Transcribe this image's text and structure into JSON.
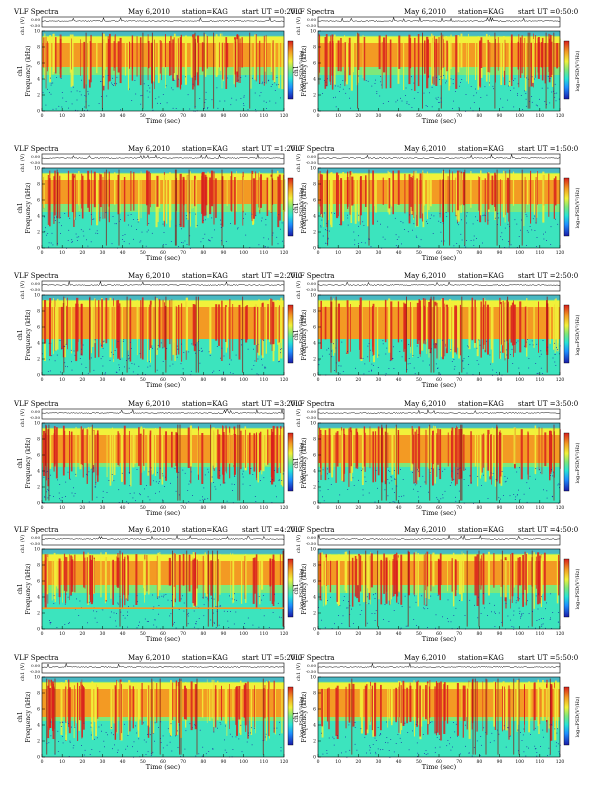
{
  "common": {
    "title_left": "VLF Spectra",
    "date": "May 6,2010",
    "station": "station=KAG",
    "wave_ylabel": "ch1 (V)",
    "wave_ticks": [
      "0.00",
      "-0.50"
    ],
    "spec_ylabel_prefix": "ch1",
    "spec_ylabel": "Frequency (kHz)",
    "freq_ticks": [
      "0",
      "2",
      "4",
      "6",
      "8",
      "10"
    ],
    "xlabel": "Time (sec)",
    "time_ticks": [
      "0",
      "10",
      "20",
      "30",
      "40",
      "50",
      "60",
      "70",
      "80",
      "90",
      "100",
      "110",
      "120"
    ],
    "colorbar_label": "log₁₀PSD(V²/Hz)"
  },
  "chart_data": [
    {
      "type": "heatmap",
      "start_label": "start UT =0:20:0",
      "xlim": [
        0,
        120
      ],
      "ylim": [
        0,
        10
      ],
      "band_khz": [
        5.5,
        8.5
      ],
      "cutoff_khz": 10
    },
    {
      "type": "heatmap",
      "start_label": "start UT =0:50:0",
      "xlim": [
        0,
        120
      ],
      "ylim": [
        0,
        10
      ],
      "band_khz": [
        5.5,
        8.5
      ],
      "cutoff_khz": 10
    },
    {
      "type": "heatmap",
      "start_label": "start UT =1:20:0",
      "xlim": [
        0,
        120
      ],
      "ylim": [
        0,
        10
      ],
      "band_khz": [
        5.5,
        8.5
      ],
      "cutoff_khz": 10
    },
    {
      "type": "heatmap",
      "start_label": "start UT =1:50:0",
      "xlim": [
        0,
        120
      ],
      "ylim": [
        0,
        10
      ],
      "band_khz": [
        5.5,
        8.5
      ],
      "cutoff_khz": 10
    },
    {
      "type": "heatmap",
      "start_label": "start UT =2:20:0",
      "xlim": [
        0,
        120
      ],
      "ylim": [
        0,
        10
      ],
      "band_khz": [
        4.5,
        8.5
      ],
      "cutoff_khz": 10
    },
    {
      "type": "heatmap",
      "start_label": "start UT =2:50:0",
      "xlim": [
        0,
        120
      ],
      "ylim": [
        0,
        10
      ],
      "band_khz": [
        4.5,
        8.5
      ],
      "cutoff_khz": 10
    },
    {
      "type": "heatmap",
      "start_label": "start UT =3:20:0",
      "xlim": [
        0,
        120
      ],
      "ylim": [
        0,
        10
      ],
      "band_khz": [
        5.0,
        8.5
      ],
      "cutoff_khz": 10
    },
    {
      "type": "heatmap",
      "start_label": "start UT =3:50:0",
      "xlim": [
        0,
        120
      ],
      "ylim": [
        0,
        10
      ],
      "band_khz": [
        5.0,
        8.5
      ],
      "cutoff_khz": 10
    },
    {
      "type": "heatmap",
      "start_label": "start UT =4:20:0",
      "xlim": [
        0,
        120
      ],
      "ylim": [
        0,
        10
      ],
      "band_khz": [
        5.5,
        8.5
      ],
      "cutoff_khz": 10,
      "line_khz": 2.6
    },
    {
      "type": "heatmap",
      "start_label": "start UT =4:50:0",
      "xlim": [
        0,
        120
      ],
      "ylim": [
        0,
        10
      ],
      "band_khz": [
        5.5,
        8.5
      ],
      "cutoff_khz": 10
    },
    {
      "type": "heatmap",
      "start_label": "start UT =5:20:0",
      "xlim": [
        0,
        120
      ],
      "ylim": [
        0,
        10
      ],
      "band_khz": [
        5.0,
        8.5
      ],
      "cutoff_khz": 10
    },
    {
      "type": "heatmap",
      "start_label": "start UT =5:50:0",
      "xlim": [
        0,
        120
      ],
      "ylim": [
        0,
        10
      ],
      "band_khz": [
        5.0,
        8.5
      ],
      "cutoff_khz": 10
    }
  ],
  "colors": {
    "dark_blue": "#1a1aa8",
    "blue": "#1e90ff",
    "cyan": "#27e3d6",
    "green": "#7de87a",
    "yellow": "#f1f13a",
    "orange": "#f39a23",
    "red": "#d8201d",
    "darkred": "#8a1010"
  }
}
